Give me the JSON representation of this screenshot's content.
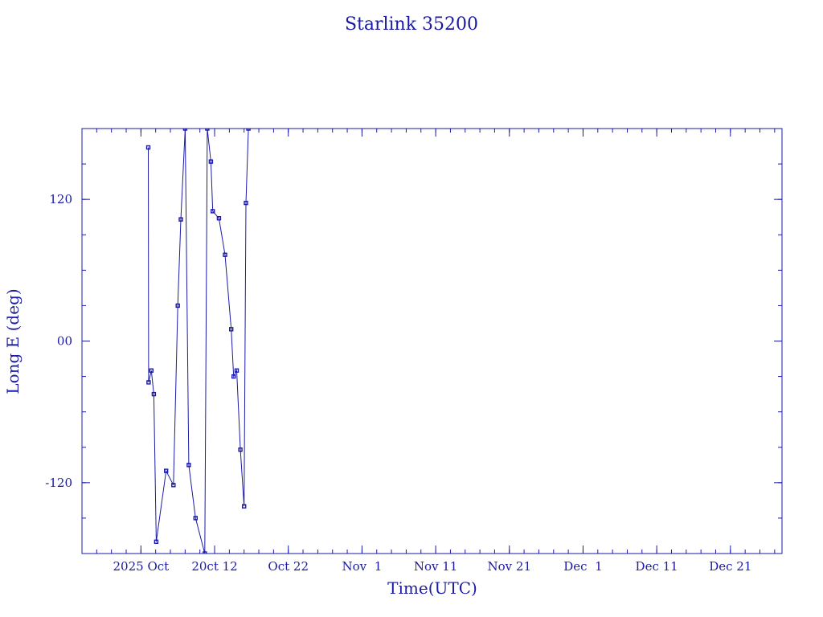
{
  "chart_data": {
    "type": "line",
    "title": "Starlink 35200",
    "xlabel": "Time(UTC)",
    "ylabel": "Long E (deg)",
    "x_tick_labels": [
      "2025 Oct",
      "20ct 12",
      "Oct 22",
      "Nov  1",
      "Nov 11",
      "Nov 21",
      "Dec  1",
      "Dec 11",
      "Dec 21"
    ],
    "x_tick_dates": [
      "2025-10-02",
      "2025-10-12",
      "2025-10-22",
      "2025-11-01",
      "2025-11-11",
      "2025-11-21",
      "2025-12-01",
      "2025-12-11",
      "2025-12-21"
    ],
    "xlim": [
      "2025-09-24",
      "2025-12-28"
    ],
    "y_tick_labels": [
      "120",
      "00",
      "-120"
    ],
    "y_tick_values": [
      120,
      0,
      -120
    ],
    "ylim": [
      -180,
      180
    ],
    "grid": false,
    "series": [
      {
        "values": [
          [
            "2025-10-03T00:00",
            164
          ],
          [
            "2025-10-03T01:00",
            -35
          ],
          [
            "2025-10-03T10:00",
            -25
          ],
          [
            "2025-10-03T18:00",
            -45
          ],
          [
            "2025-10-04T02:00",
            -170
          ],
          [
            "2025-10-05T10:00",
            -110
          ],
          [
            "2025-10-06T10:00",
            -122
          ],
          [
            "2025-10-07T00:00",
            30
          ],
          [
            "2025-10-07T10:00",
            103
          ],
          [
            "2025-10-08T00:00",
            180
          ],
          [
            "2025-10-08T12:00",
            -105
          ],
          [
            "2025-10-09T10:00",
            -150
          ],
          [
            "2025-10-10T16:00",
            -180
          ],
          [
            "2025-10-11T00:00",
            180
          ],
          [
            "2025-10-11T12:00",
            152
          ],
          [
            "2025-10-11T18:00",
            110
          ],
          [
            "2025-10-12T14:00",
            104
          ],
          [
            "2025-10-13T10:00",
            73
          ],
          [
            "2025-10-14T06:00",
            10
          ],
          [
            "2025-10-14T14:00",
            -30
          ],
          [
            "2025-10-15T00:00",
            -25
          ],
          [
            "2025-10-15T12:00",
            -92
          ],
          [
            "2025-10-16T00:00",
            -140
          ],
          [
            "2025-10-16T06:00",
            117
          ],
          [
            "2025-10-16T14:00",
            180
          ]
        ]
      }
    ]
  }
}
